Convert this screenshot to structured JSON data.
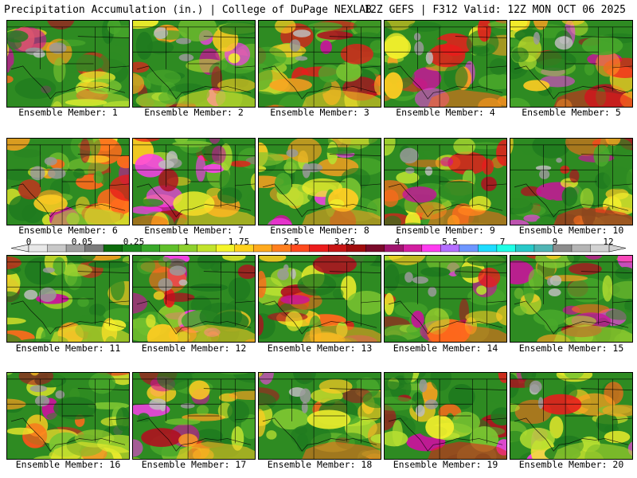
{
  "header": {
    "left": "Precipitation Accumulation (in.) | College of DuPage NEXLAB",
    "right": "12Z GEFS | F312 Valid: 12Z MON OCT 06 2025"
  },
  "panels": [
    {
      "caption": "Ensemble Member: 1"
    },
    {
      "caption": "Ensemble Member: 2"
    },
    {
      "caption": "Ensemble Member: 3"
    },
    {
      "caption": "Ensemble Member: 4"
    },
    {
      "caption": "Ensemble Member: 5"
    },
    {
      "caption": "Ensemble Member: 6"
    },
    {
      "caption": "Ensemble Member: 7"
    },
    {
      "caption": "Ensemble Member: 8"
    },
    {
      "caption": "Ensemble Member: 9"
    },
    {
      "caption": "Ensemble Member: 10"
    },
    {
      "caption": "Ensemble Member: 11"
    },
    {
      "caption": "Ensemble Member: 12"
    },
    {
      "caption": "Ensemble Member: 13"
    },
    {
      "caption": "Ensemble Member: 14"
    },
    {
      "caption": "Ensemble Member: 15"
    },
    {
      "caption": "Ensemble Member: 16"
    },
    {
      "caption": "Ensemble Member: 17"
    },
    {
      "caption": "Ensemble Member: 18"
    },
    {
      "caption": "Ensemble Member: 19"
    },
    {
      "caption": "Ensemble Member: 20"
    }
  ],
  "colorbar": {
    "labels": [
      "0",
      "0.05",
      "0.25",
      "1",
      "1.75",
      "2.5",
      "3.25",
      "4",
      "5.5",
      "7",
      "9",
      "12"
    ],
    "colors": [
      "#e8e8e8",
      "#c8c8c8",
      "#a0a0a0",
      "#7a7a7a",
      "#0c6b0c",
      "#1f8a1f",
      "#38a82a",
      "#5fbf2b",
      "#8ed12e",
      "#c2e32c",
      "#f5f52a",
      "#ffd21e",
      "#ffaa1e",
      "#ff7f1e",
      "#ff4a1e",
      "#ec1c1c",
      "#c81414",
      "#a00c0c",
      "#7a0a2a",
      "#a0146e",
      "#d21ea0",
      "#ff3cf0",
      "#b46eff",
      "#6e96ff",
      "#1edcff",
      "#1effe6",
      "#28c8c8",
      "#50b4b4",
      "#8c8c8c",
      "#b4b4b4",
      "#d2d2d2"
    ]
  }
}
